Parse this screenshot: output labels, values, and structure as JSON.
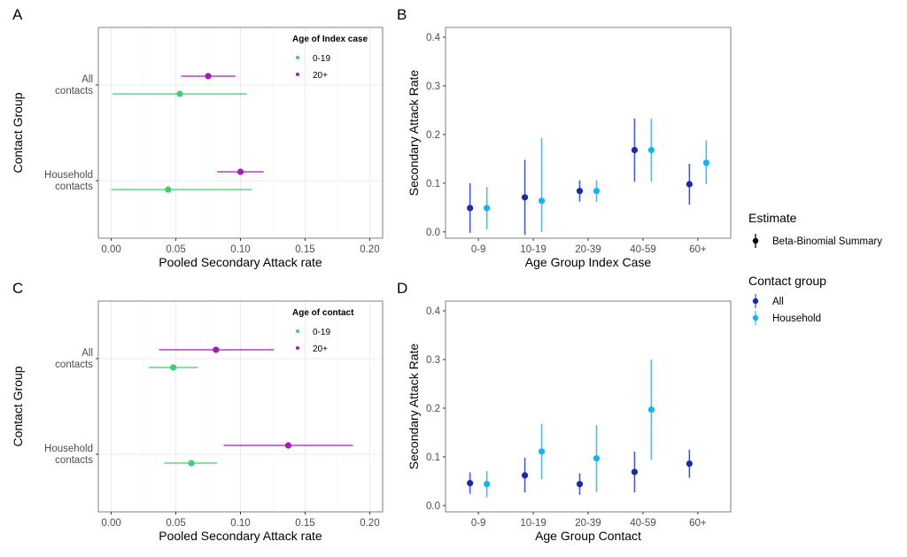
{
  "colors": {
    "green": "#3ecf6e",
    "purple": "#a31fb3",
    "all": "#1a2ba8",
    "all_line": "#4a5cc4",
    "household": "#17b2f2",
    "household_line": "#3ec0f4",
    "frame": "#7f7f7f",
    "grid": "#ebebeb"
  },
  "chart_data": [
    {
      "id": "A",
      "type": "scatter",
      "orientation": "horizontal",
      "panel_label": "A",
      "xlabel": "Pooled Secondary Attack rate",
      "ylabel": "Contact Group",
      "xlim": [
        -0.01,
        0.21
      ],
      "xticks": [
        0.0,
        0.05,
        0.1,
        0.15,
        0.2
      ],
      "xtick_labels": [
        "0.00",
        "0.05",
        "0.10",
        "0.15",
        "0.20"
      ],
      "categories": [
        {
          "line1": "All",
          "line2": "contacts"
        },
        {
          "line1": "Household",
          "line2": "contacts"
        }
      ],
      "legend": {
        "title": "Age of Index case",
        "position": "top-right",
        "entries": [
          "0-19",
          "20+"
        ]
      },
      "series": [
        {
          "name": "0-19",
          "color_key": "green",
          "points": [
            {
              "category": 0,
              "value": 0.053,
              "lo": 0.001,
              "hi": 0.105
            },
            {
              "category": 1,
              "value": 0.044,
              "lo": 0.0,
              "hi": 0.109
            }
          ]
        },
        {
          "name": "20+",
          "color_key": "purple",
          "points": [
            {
              "category": 0,
              "value": 0.075,
              "lo": 0.054,
              "hi": 0.096
            },
            {
              "category": 1,
              "value": 0.1,
              "lo": 0.082,
              "hi": 0.118
            }
          ]
        }
      ],
      "grid": true
    },
    {
      "id": "B",
      "type": "scatter",
      "orientation": "vertical",
      "panel_label": "B",
      "xlabel": "Age Group Index Case",
      "ylabel": "Secondary Attack Rate",
      "ylim": [
        -0.013,
        0.42
      ],
      "yticks": [
        0.0,
        0.1,
        0.2,
        0.3,
        0.4
      ],
      "ytick_labels": [
        "0.0",
        "0.1",
        "0.2",
        "0.3",
        "0.4"
      ],
      "categories": [
        "0-9",
        "10-19",
        "20-39",
        "40-59",
        "60+"
      ],
      "series": [
        {
          "name": "All",
          "color_key": "all",
          "line_key": "all_line",
          "points": [
            {
              "value": 0.049,
              "lo": -0.002,
              "hi": 0.1
            },
            {
              "value": 0.071,
              "lo": -0.006,
              "hi": 0.148
            },
            {
              "value": 0.084,
              "lo": 0.062,
              "hi": 0.106
            },
            {
              "value": 0.168,
              "lo": 0.103,
              "hi": 0.233
            },
            {
              "value": 0.098,
              "lo": 0.056,
              "hi": 0.14
            }
          ]
        },
        {
          "name": "Household",
          "color_key": "household",
          "line_key": "household_line",
          "points": [
            {
              "value": 0.049,
              "lo": 0.005,
              "hi": 0.092
            },
            {
              "value": 0.064,
              "lo": 0.0,
              "hi": 0.193
            },
            {
              "value": 0.084,
              "lo": 0.062,
              "hi": 0.106
            },
            {
              "value": 0.168,
              "lo": 0.103,
              "hi": 0.233
            },
            {
              "value": 0.142,
              "lo": 0.098,
              "hi": 0.188
            }
          ]
        }
      ],
      "grid": false
    },
    {
      "id": "C",
      "type": "scatter",
      "orientation": "horizontal",
      "panel_label": "C",
      "xlabel": "Pooled Secondary Attack rate",
      "ylabel": "Contact Group",
      "xlim": [
        -0.01,
        0.21
      ],
      "xticks": [
        0.0,
        0.05,
        0.1,
        0.15,
        0.2
      ],
      "xtick_labels": [
        "0.00",
        "0.05",
        "0.10",
        "0.15",
        "0.20"
      ],
      "categories": [
        {
          "line1": "All",
          "line2": "contacts"
        },
        {
          "line1": "Household",
          "line2": "contacts"
        }
      ],
      "legend": {
        "title": "Age of contact",
        "position": "top-right",
        "entries": [
          "0-19",
          "20+"
        ]
      },
      "series": [
        {
          "name": "0-19",
          "color_key": "green",
          "points": [
            {
              "category": 0,
              "value": 0.048,
              "lo": 0.029,
              "hi": 0.067
            },
            {
              "category": 1,
              "value": 0.062,
              "lo": 0.041,
              "hi": 0.082
            }
          ]
        },
        {
          "name": "20+",
          "color_key": "purple",
          "points": [
            {
              "category": 0,
              "value": 0.081,
              "lo": 0.037,
              "hi": 0.126
            },
            {
              "category": 1,
              "value": 0.137,
              "lo": 0.087,
              "hi": 0.187
            }
          ]
        }
      ],
      "grid": true
    },
    {
      "id": "D",
      "type": "scatter",
      "orientation": "vertical",
      "panel_label": "D",
      "xlabel": "Age Group Contact",
      "ylabel": "Secondary Attack Rate",
      "ylim": [
        -0.013,
        0.42
      ],
      "yticks": [
        0.0,
        0.1,
        0.2,
        0.3,
        0.4
      ],
      "ytick_labels": [
        "0.0",
        "0.1",
        "0.2",
        "0.3",
        "0.4"
      ],
      "categories": [
        "0-9",
        "10-19",
        "20-39",
        "40-59",
        "60+"
      ],
      "series": [
        {
          "name": "All",
          "color_key": "all",
          "line_key": "all_line",
          "points": [
            {
              "value": 0.046,
              "lo": 0.024,
              "hi": 0.068
            },
            {
              "value": 0.062,
              "lo": 0.027,
              "hi": 0.098
            },
            {
              "value": 0.044,
              "lo": 0.022,
              "hi": 0.066
            },
            {
              "value": 0.069,
              "lo": 0.027,
              "hi": 0.111
            },
            {
              "value": 0.086,
              "lo": 0.057,
              "hi": 0.115
            }
          ]
        },
        {
          "name": "Household",
          "color_key": "household",
          "line_key": "household_line",
          "points": [
            {
              "value": 0.044,
              "lo": 0.017,
              "hi": 0.071
            },
            {
              "value": 0.111,
              "lo": 0.054,
              "hi": 0.168
            },
            {
              "value": 0.097,
              "lo": 0.028,
              "hi": 0.165
            },
            {
              "value": 0.197,
              "lo": 0.094,
              "hi": 0.3
            },
            null
          ]
        }
      ],
      "grid": false
    }
  ],
  "shared_legend": {
    "estimate_title": "Estimate",
    "estimate_entry": "Beta-Binomial Summary",
    "contact_title": "Contact group",
    "contact_entries": [
      "All",
      "Household"
    ]
  }
}
